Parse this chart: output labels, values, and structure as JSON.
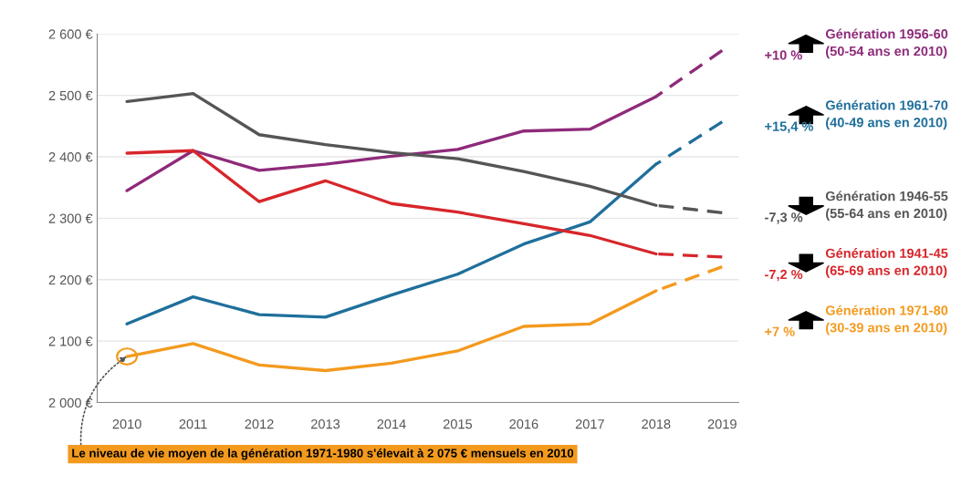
{
  "chart_data": {
    "type": "line",
    "xlim": [
      2009.55,
      2019.25
    ],
    "xticks": [
      2010,
      2011,
      2012,
      2013,
      2014,
      2015,
      2016,
      2017,
      2018,
      2019
    ],
    "ylim": [
      2000,
      2600
    ],
    "yticks": [
      {
        "value": 2000,
        "label": "2 000 €"
      },
      {
        "value": 2100,
        "label": "2 100 €"
      },
      {
        "value": 2200,
        "label": "2 200 €"
      },
      {
        "value": 2300,
        "label": "2 300 €"
      },
      {
        "value": 2400,
        "label": "2 400 €"
      },
      {
        "value": 2500,
        "label": "2 500 €"
      },
      {
        "value": 2600,
        "label": "2 600 €"
      }
    ],
    "grid": "y",
    "legend": false,
    "marker": "none",
    "line_style": "solid",
    "series": [
      {
        "name": "Génération 1956-60\n(50-54 ans en 2010)",
        "color": "#8e2a7a",
        "x": [
          2010,
          2011,
          2012,
          2013,
          2014,
          2015,
          2016,
          2017,
          2018
        ],
        "values": [
          2345,
          2410,
          2378,
          2388,
          2401,
          2412,
          2442,
          2445,
          2498
        ]
      },
      {
        "color": "#8e2a7a",
        "x": [
          2018,
          2019
        ],
        "values": [
          2498,
          2573
        ],
        "line_style": "dashed"
      },
      {
        "name": "Génération 1961-70\n(40-49 ans en 2010)",
        "color": "#1f6f9c",
        "x": [
          2010,
          2011,
          2012,
          2013,
          2014,
          2015,
          2016,
          2017,
          2018
        ],
        "values": [
          2128,
          2172,
          2143,
          2139,
          2175,
          2209,
          2258,
          2294,
          2388
        ]
      },
      {
        "color": "#1f6f9c",
        "x": [
          2018,
          2019
        ],
        "values": [
          2388,
          2457
        ],
        "line_style": "dashed"
      },
      {
        "name": "Génération 1946-55\n(55-64 ans en 2010)",
        "color": "#555555",
        "x": [
          2010,
          2011,
          2012,
          2013,
          2014,
          2015,
          2016,
          2017,
          2018
        ],
        "values": [
          2490,
          2503,
          2436,
          2420,
          2407,
          2397,
          2376,
          2352,
          2321
        ]
      },
      {
        "color": "#555555",
        "x": [
          2018,
          2019
        ],
        "values": [
          2321,
          2309
        ],
        "line_style": "dashed"
      },
      {
        "name": "Génération 1941-45\n(65-69 ans en 2010)",
        "color": "#d7262b",
        "x": [
          2010,
          2011,
          2012,
          2013,
          2014,
          2015,
          2016,
          2017,
          2018
        ],
        "values": [
          2406,
          2410,
          2327,
          2361,
          2324,
          2310,
          2291,
          2272,
          2242
        ]
      },
      {
        "color": "#d7262b",
        "x": [
          2018,
          2019
        ],
        "values": [
          2242,
          2237
        ],
        "line_style": "dashed"
      },
      {
        "name": "Génération 1971-80\n(30-39 ans en 2010)",
        "color": "#f39a1e",
        "x": [
          2010,
          2011,
          2012,
          2013,
          2014,
          2015,
          2016,
          2017,
          2018
        ],
        "values": [
          2075,
          2096,
          2061,
          2052,
          2064,
          2084,
          2124,
          2128,
          2182
        ]
      },
      {
        "color": "#f39a1e",
        "x": [
          2018,
          2019
        ],
        "values": [
          2182,
          2221
        ],
        "line_style": "dashed"
      }
    ],
    "annotations": [
      "+10 %",
      "+15,4 %",
      "-7,3 %",
      "-7,2 %",
      "+7 %",
      {
        "text": "Le niveau de vie moyen de la génération 1971-1980 s'élevait à 2 075 € mensuels en 2010",
        "x": 2010,
        "y": 2075
      }
    ]
  }
}
